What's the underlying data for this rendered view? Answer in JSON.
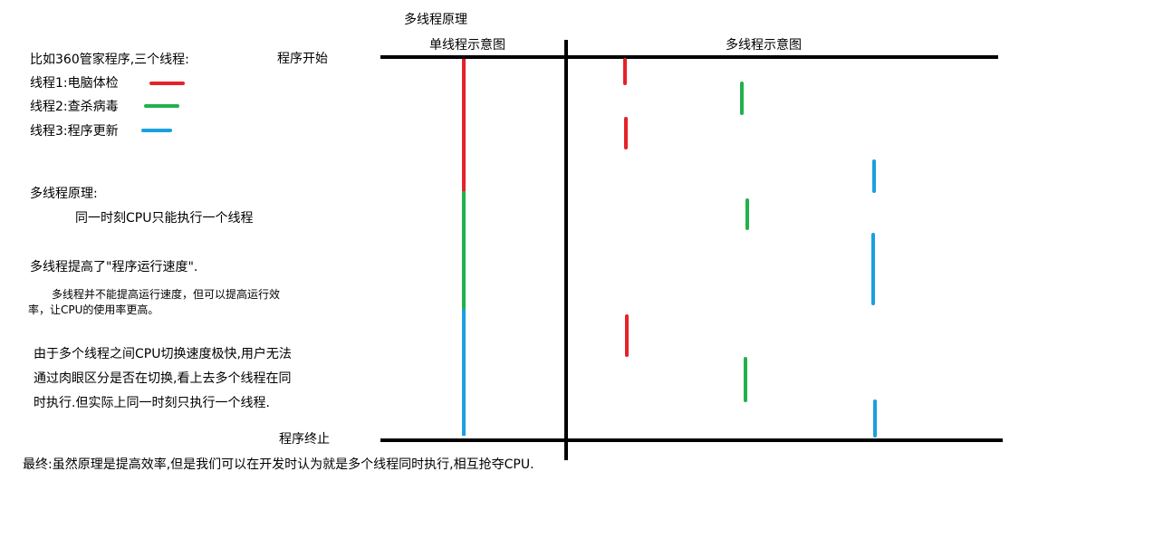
{
  "title": "多线程原理",
  "diagram": {
    "single_label": "单线程示意图",
    "multi_label": "多线程示意图",
    "start_label": "程序开始",
    "end_label": "程序终止"
  },
  "intro": "比如360管家程序,三个线程:",
  "threads": [
    {
      "label": "线程1:电脑体检",
      "color": "#e5222a"
    },
    {
      "label": "线程2:查杀病毒",
      "color": "#22b14c"
    },
    {
      "label": "线程3:程序更新",
      "color": "#1aa0e0"
    }
  ],
  "principle": {
    "heading": "多线程原理:",
    "text": "同一时刻CPU只能执行一个线程"
  },
  "speed": {
    "heading": "多线程提高了\"程序运行速度\".",
    "line1": "多线程并不能提高运行速度，但可以提高运行效",
    "line2": "率，让CPU的使用率更高。"
  },
  "switching": {
    "line1": "由于多个线程之间CPU切换速度极快,用户无法",
    "line2": "通过肉眼区分是否在切换,看上去多个线程在同",
    "line3": "时执行.但实际上同一时刻只执行一个线程."
  },
  "conclusion": "最终:虽然原理是提高效率,但是我们可以在开发时认为就是多个线程同时执行,相互抢夺CPU.",
  "colors": {
    "axis": "#000000",
    "red": "#e5222a",
    "green": "#22b14c",
    "blue": "#1aa0e0"
  }
}
